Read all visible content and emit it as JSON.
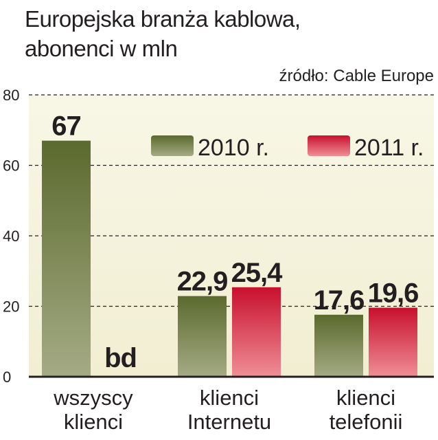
{
  "header": {
    "title_line1": "Europejska branża kablowa,",
    "title_line2": "abonenci w mln",
    "source": "źródło: Cable Europe"
  },
  "chart_data": {
    "type": "bar",
    "title": "Europejska branża kablowa, abonenci w mln",
    "source": "źródło: Cable Europe",
    "categories": [
      [
        "wszyscy",
        "klienci"
      ],
      [
        "klienci",
        "Internetu"
      ],
      [
        "klienci",
        "telefonii"
      ]
    ],
    "series": [
      {
        "name": "2010 r.",
        "color": "#6b7a3c",
        "values": [
          67,
          22.9,
          17.6
        ],
        "labels": [
          "67",
          "22,9",
          "17,6"
        ]
      },
      {
        "name": "2011 r.",
        "color": "#d4203f",
        "values": [
          null,
          25.4,
          19.6
        ],
        "labels": [
          "bd",
          "25,4",
          "19,6"
        ]
      }
    ],
    "ylim": [
      0,
      80
    ],
    "yticks": [
      0,
      20,
      40,
      60,
      80
    ],
    "grid": true,
    "legend_position": "top-right",
    "plot_background": "#f6f4df"
  }
}
